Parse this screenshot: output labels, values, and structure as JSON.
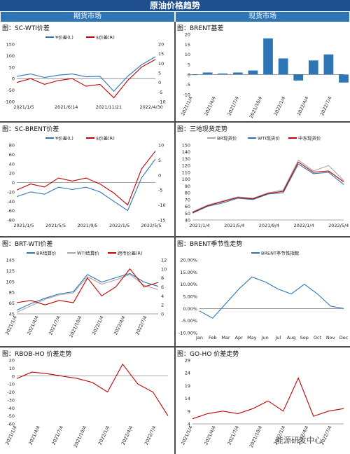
{
  "header": {
    "title": "原油价格趋势"
  },
  "sections": {
    "left": "期货市场",
    "right": "现货市场"
  },
  "watermark": "能源研发中心",
  "panels": [
    {
      "title": "图：SC-WTI价差"
    },
    {
      "title": "图：BRENT基差"
    },
    {
      "title": "图：SC-BRENT价差"
    },
    {
      "title": "图：三地现货走势"
    },
    {
      "title": "图：BRT-WTI价差"
    },
    {
      "title": "图：BRENT季节性走势"
    },
    {
      "title": "图：RBOB-HO 价差走势"
    },
    {
      "title": "图：GO-HO 价差走势"
    }
  ],
  "chart_data": [
    {
      "type": "line",
      "title": "图：SC-WTI价差",
      "x": [
        "2021/1/5",
        "2021/3/10",
        "2021/4/1",
        "2021/6/14",
        "2021/8/15",
        "2021/11/21",
        "2022/1/20",
        "2022/4/30",
        "2022/6/1",
        "2022/7/15",
        "2022/8/30"
      ],
      "xticks": [
        "2021/1/5",
        "2021/6/14",
        "2021/11/21",
        "2022/4/30"
      ],
      "series": [
        {
          "name": "¥价差(L)",
          "axis": "left",
          "color": "#2e75b6",
          "values": [
            10,
            20,
            5,
            15,
            20,
            8,
            10,
            -55,
            10,
            60,
            95
          ]
        },
        {
          "name": "$价差(R)",
          "axis": "right",
          "color": "#c00000",
          "values": [
            0,
            2,
            -1,
            1,
            2,
            -2,
            -1,
            -8,
            1,
            8,
            12
          ]
        }
      ],
      "ylim_left": [
        -100,
        150
      ],
      "yticks_left": [
        -100,
        -50,
        0,
        50,
        100,
        150
      ],
      "ylim_right": [
        -10,
        20
      ],
      "yticks_right": [
        -10,
        -5,
        0,
        5,
        10,
        15,
        20
      ],
      "legend": "top"
    },
    {
      "type": "bar",
      "title": "图：BRENT基差",
      "x": [
        "2021/1/4",
        "2021/4/4",
        "2021/7/4",
        "2021/10/4",
        "2022/1/4",
        "2022/3/1",
        "2022/4/4",
        "2022/5/1",
        "2022/6/1",
        "2022/7/4",
        "2022/8/1"
      ],
      "xticks": [
        "2021/1/4",
        "2021/4/4",
        "2021/7/4",
        "2021/10/4",
        "2022/1/4",
        "2022/4/4",
        "2022/7/4"
      ],
      "values": [
        0,
        1,
        0.5,
        1,
        2,
        18,
        8,
        -3,
        7,
        10,
        -4
      ],
      "color": "#2e75b6",
      "ylim": [
        -10,
        20
      ],
      "yticks": [
        -10,
        -5,
        0,
        5,
        10,
        15,
        20
      ]
    },
    {
      "type": "line",
      "title": "图：SC-BRENT价差",
      "x": [
        "2021/1/5",
        "2021/3/1",
        "2021/5/5",
        "2021/7/1",
        "2021/9/5",
        "2021/11/1",
        "2022/1/5",
        "2022/3/1",
        "2022/5/5",
        "2022/7/1",
        "2022/8/30"
      ],
      "xticks": [
        "2021/1/5",
        "2021/5/5",
        "2021/9/5",
        "2022/1/5",
        "2022/5/5"
      ],
      "series": [
        {
          "name": "¥价差(L)",
          "axis": "left",
          "color": "#2e75b6",
          "values": [
            -30,
            -20,
            -25,
            -10,
            -15,
            -10,
            -20,
            -40,
            -60,
            10,
            50
          ]
        },
        {
          "name": "$价差(R)",
          "axis": "right",
          "color": "#c00000",
          "values": [
            -5,
            -3,
            -4,
            -1,
            -2,
            -1,
            -3,
            -6,
            -10,
            2,
            8
          ]
        }
      ],
      "ylim_left": [
        -80,
        80
      ],
      "yticks_left": [
        -80,
        -60,
        -40,
        -20,
        0,
        20,
        40,
        60,
        80
      ],
      "ylim_right": [
        -15,
        10
      ],
      "yticks_right": [
        -15,
        -10,
        -5,
        0,
        5,
        10
      ],
      "legend": "top"
    },
    {
      "type": "line",
      "title": "图：三地现货走势",
      "x": [
        "2021/1/4",
        "2021/3/1",
        "2021/5/4",
        "2021/7/1",
        "2021/9/4",
        "2021/11/1",
        "2022/1/4",
        "2022/3/8",
        "2022/5/4",
        "2022/7/1",
        "2022/8/30"
      ],
      "xticks": [
        "2021/1/4",
        "2021/5/4",
        "2021/9/4",
        "2022/1/4",
        "2022/5/4"
      ],
      "series": [
        {
          "name": "BR现货价",
          "color": "#a6a6a6",
          "values": [
            52,
            62,
            68,
            74,
            72,
            80,
            84,
            128,
            112,
            120,
            98
          ]
        },
        {
          "name": "WTI现货价",
          "color": "#2e75b6",
          "values": [
            50,
            60,
            65,
            72,
            70,
            78,
            80,
            122,
            108,
            110,
            92
          ]
        },
        {
          "name": "中东现货价",
          "color": "#c00000",
          "values": [
            51,
            61,
            67,
            73,
            71,
            79,
            82,
            125,
            110,
            112,
            96
          ]
        }
      ],
      "ylim": [
        40,
        150
      ],
      "yticks": [
        40,
        50,
        60,
        70,
        80,
        90,
        100,
        110,
        120,
        130,
        140,
        150
      ],
      "legend": "top"
    },
    {
      "type": "line",
      "title": "图：BRT-WTI价差",
      "x": [
        "2021/1/4",
        "2021/4/4",
        "2021/7/4",
        "2021/10/4",
        "2022/1/4",
        "2022/3/1",
        "2022/4/4",
        "2022/5/1",
        "2022/6/1",
        "2022/7/4",
        "2022/8/30"
      ],
      "xticks": [
        "2021/1/4",
        "2021/4/4",
        "2021/7/4",
        "2021/10/4",
        "2022/1/4",
        "2022/4/4",
        "2022/7/4"
      ],
      "series": [
        {
          "name": "BR结算价",
          "axis": "left",
          "color": "#2e75b6",
          "values": [
            52,
            64,
            74,
            82,
            86,
            118,
            104,
            112,
            120,
            104,
            96
          ]
        },
        {
          "name": "WTI结算价",
          "axis": "left",
          "color": "#a6a6a6",
          "values": [
            48,
            60,
            72,
            80,
            84,
            114,
            100,
            108,
            118,
            98,
            90
          ]
        },
        {
          "name": "跨市价差(R)",
          "axis": "right",
          "color": "#c00000",
          "values": [
            2.5,
            3,
            2,
            3,
            2.5,
            8,
            4,
            6,
            10,
            6,
            7
          ]
        }
      ],
      "ylim_left": [
        45,
        145
      ],
      "yticks_left": [
        45,
        65,
        85,
        105,
        125,
        145
      ],
      "ylim_right": [
        0,
        12
      ],
      "yticks_right": [
        0,
        2,
        4,
        6,
        8,
        10,
        12
      ],
      "legend": "top"
    },
    {
      "type": "line",
      "title": "图：BRENT季节性走势",
      "categories": [
        "Jan",
        "Feb",
        "Mar",
        "Apr",
        "May",
        "Jun",
        "Jul",
        "Aug",
        "Sep",
        "Oct",
        "Nov",
        "Dec"
      ],
      "series": [
        {
          "name": "BRENT季节性指数",
          "color": "#2e75b6",
          "values": [
            -1,
            -4,
            2,
            8,
            13,
            11,
            8,
            6,
            10,
            6,
            1,
            0
          ]
        }
      ],
      "ylim": [
        -10,
        20
      ],
      "yticks": [
        "-10.00%",
        "-5.00%",
        "0.00%",
        "5.00%",
        "10.00%",
        "15.00%",
        "20.00%"
      ],
      "legend": "top"
    },
    {
      "type": "line",
      "title": "图：RBOB-HO 价差走势",
      "x": [
        "2021/1/4",
        "2021/4/4",
        "2021/7/4",
        "2021/10/4",
        "2022/1/4",
        "2022/3/1",
        "2022/4/4",
        "2022/5/1",
        "2022/6/1",
        "2022/7/4",
        "2022/8/30"
      ],
      "xticks": [
        "2021/1/4",
        "2021/4/4",
        "2021/7/4",
        "2021/10/4",
        "2022/1/4",
        "2022/4/4",
        "2022/7/4"
      ],
      "series": [
        {
          "name": "",
          "color": "#c00000",
          "values": [
            -3,
            5,
            3,
            0,
            -3,
            -8,
            -20,
            15,
            -10,
            -20,
            -50
          ]
        }
      ],
      "ylim": [
        -60,
        20
      ],
      "yticks": [
        -60,
        -50,
        -40,
        -30,
        -20,
        -10,
        0,
        10,
        20
      ]
    },
    {
      "type": "line",
      "title": "图：GO-HO 价差走势",
      "x": [
        "2021/1/4",
        "2021/4/4",
        "2021/7/4",
        "2021/10/4",
        "2022/1/4",
        "2022/3/1",
        "2022/4/4",
        "2022/5/1",
        "2022/6/1",
        "2022/7/4",
        "2022/8/30"
      ],
      "xticks": [
        "2021/1/4",
        "2021/4/4",
        "2021/7/4",
        "2021/10/4",
        "2022/1/4",
        "2022/4/4",
        "2022/7/4"
      ],
      "series": [
        {
          "name": "",
          "color": "#c00000",
          "values": [
            6,
            8,
            9,
            8,
            10,
            13,
            9,
            22,
            7,
            9,
            10
          ]
        }
      ],
      "ylim": [
        4,
        29
      ],
      "yticks": [
        4,
        9,
        14,
        19,
        24,
        29
      ]
    }
  ]
}
